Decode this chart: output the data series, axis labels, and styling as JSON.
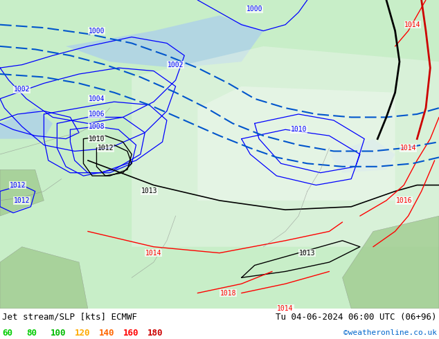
{
  "title_left": "Jet stream/SLP [kts] ECMWF",
  "title_right": "Tu 04-06-2024 06:00 UTC (06+96)",
  "credit": "©weatheronline.co.uk",
  "legend_values": [
    60,
    80,
    100,
    120,
    140,
    160,
    180
  ],
  "legend_colors": [
    "#00cc00",
    "#00cc00",
    "#00bb00",
    "#ffaa00",
    "#ff6600",
    "#ff0000",
    "#cc0000"
  ],
  "bg_color": "#aaddaa",
  "map_bg": "#c8eec8",
  "water_color": "#b0d0f0",
  "land_color": "#c8eec8",
  "border_color": "#888888",
  "isobar_color_blue": "#0000ff",
  "isobar_color_black": "#000000",
  "isobar_color_red": "#ff0000",
  "title_bg": "#ffffff",
  "title_fontsize": 9,
  "legend_fontsize": 9,
  "figsize": [
    6.34,
    4.9
  ],
  "dpi": 100
}
